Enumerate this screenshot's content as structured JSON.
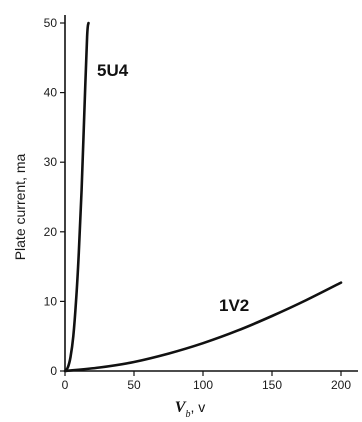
{
  "chart_data": {
    "type": "line",
    "title": "",
    "ylabel": "Plate current, ma",
    "xlabel": {
      "symbol": "V",
      "subscript": "b",
      "unit": ", v"
    },
    "xlim": [
      0,
      200
    ],
    "ylim": [
      0,
      50
    ],
    "x_ticks": [
      0,
      50,
      100,
      150,
      200
    ],
    "y_ticks": [
      0,
      10,
      20,
      30,
      40,
      50
    ],
    "grid": false,
    "series": [
      {
        "name": "5U4",
        "color": "#111111",
        "x": [
          0,
          2,
          4,
          6,
          8,
          10,
          12,
          14,
          16,
          17
        ],
        "y": [
          0,
          0.5,
          2,
          5,
          10,
          17,
          26,
          37,
          48,
          50
        ]
      },
      {
        "name": "1V2",
        "color": "#111111",
        "x": [
          0,
          25,
          50,
          75,
          100,
          125,
          150,
          175,
          200
        ],
        "y": [
          0,
          0.5,
          1.3,
          2.5,
          4,
          5.8,
          7.9,
          10.2,
          12.7
        ]
      }
    ]
  }
}
